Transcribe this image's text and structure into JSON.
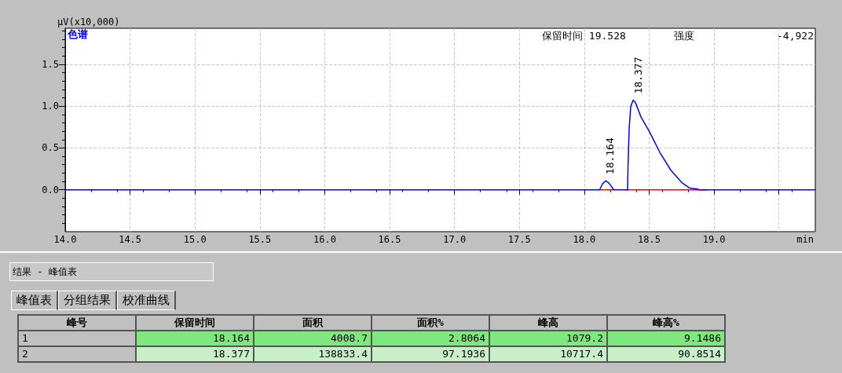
{
  "chart_data": {
    "type": "line",
    "ylabel": "μV(x10,000)",
    "xlabel": "min",
    "xlim": [
      14.0,
      19.78
    ],
    "ylim": [
      -0.5,
      1.93
    ],
    "xticks": [
      {
        "value": 14,
        "label": "14.0"
      },
      {
        "value": 14.5,
        "label": "14.5"
      },
      {
        "value": 15,
        "label": "15.0"
      },
      {
        "value": 15.5,
        "label": "15.5"
      },
      {
        "value": 16,
        "label": "16.0"
      },
      {
        "value": 16.5,
        "label": "16.5"
      },
      {
        "value": 17,
        "label": "17.0"
      },
      {
        "value": 17.5,
        "label": "17.5"
      },
      {
        "value": 18,
        "label": "18.0"
      },
      {
        "value": 18.5,
        "label": "18.5"
      },
      {
        "value": 19,
        "label": "19.0"
      },
      {
        "value": 19.5,
        "label": null
      }
    ],
    "yticks": [
      {
        "value": 0,
        "label": "0.0"
      },
      {
        "value": 0.5,
        "label": "0.5"
      },
      {
        "value": 1,
        "label": "1.0"
      },
      {
        "value": 1.5,
        "label": "1.5"
      }
    ],
    "grid": true,
    "marker": "none",
    "line_style": "solid",
    "series": [
      {
        "color": "#0000ff",
        "x": [
          14.0,
          18.118,
          18.14,
          18.164,
          18.19,
          18.227,
          18.334,
          18.337,
          18.346,
          18.358,
          18.377,
          18.395,
          18.438,
          18.5,
          18.583,
          18.667,
          18.75,
          18.813,
          18.875,
          18.88,
          19.78
        ],
        "values": [
          0,
          0,
          0.07,
          0.108,
          0.08,
          0,
          0,
          0.3,
          0.74,
          1.0,
          1.072,
          1.04,
          0.866,
          0.7,
          0.445,
          0.234,
          0.088,
          0.02,
          0.01,
          0,
          0
        ]
      },
      {
        "color": "#ff0000",
        "x": [
          18.118,
          18.227
        ],
        "values": [
          0,
          0
        ]
      },
      {
        "color": "#ff0000",
        "x": [
          18.32,
          18.95
        ],
        "values": [
          0,
          0
        ]
      }
    ],
    "annotations": [
      "色谱",
      "保留时间 19.528",
      "强度",
      "-4,922",
      {
        "text": "18.164",
        "x": 18.164,
        "y": 0.108
      },
      {
        "text": "18.377",
        "x": 18.377,
        "y": 1.072
      },
      "结果 - 峰值表",
      "峰值表",
      "分组结果",
      "校准曲线",
      "峰号",
      "保留时间",
      "面积",
      "面积%",
      "峰高",
      "峰高%",
      "1",
      "18.164",
      "4008.7",
      "2.8064",
      "1079.2",
      "9.1486",
      "2",
      "18.377",
      "138833.4",
      "97.1936",
      "10717.4",
      "90.8514"
    ]
  }
}
